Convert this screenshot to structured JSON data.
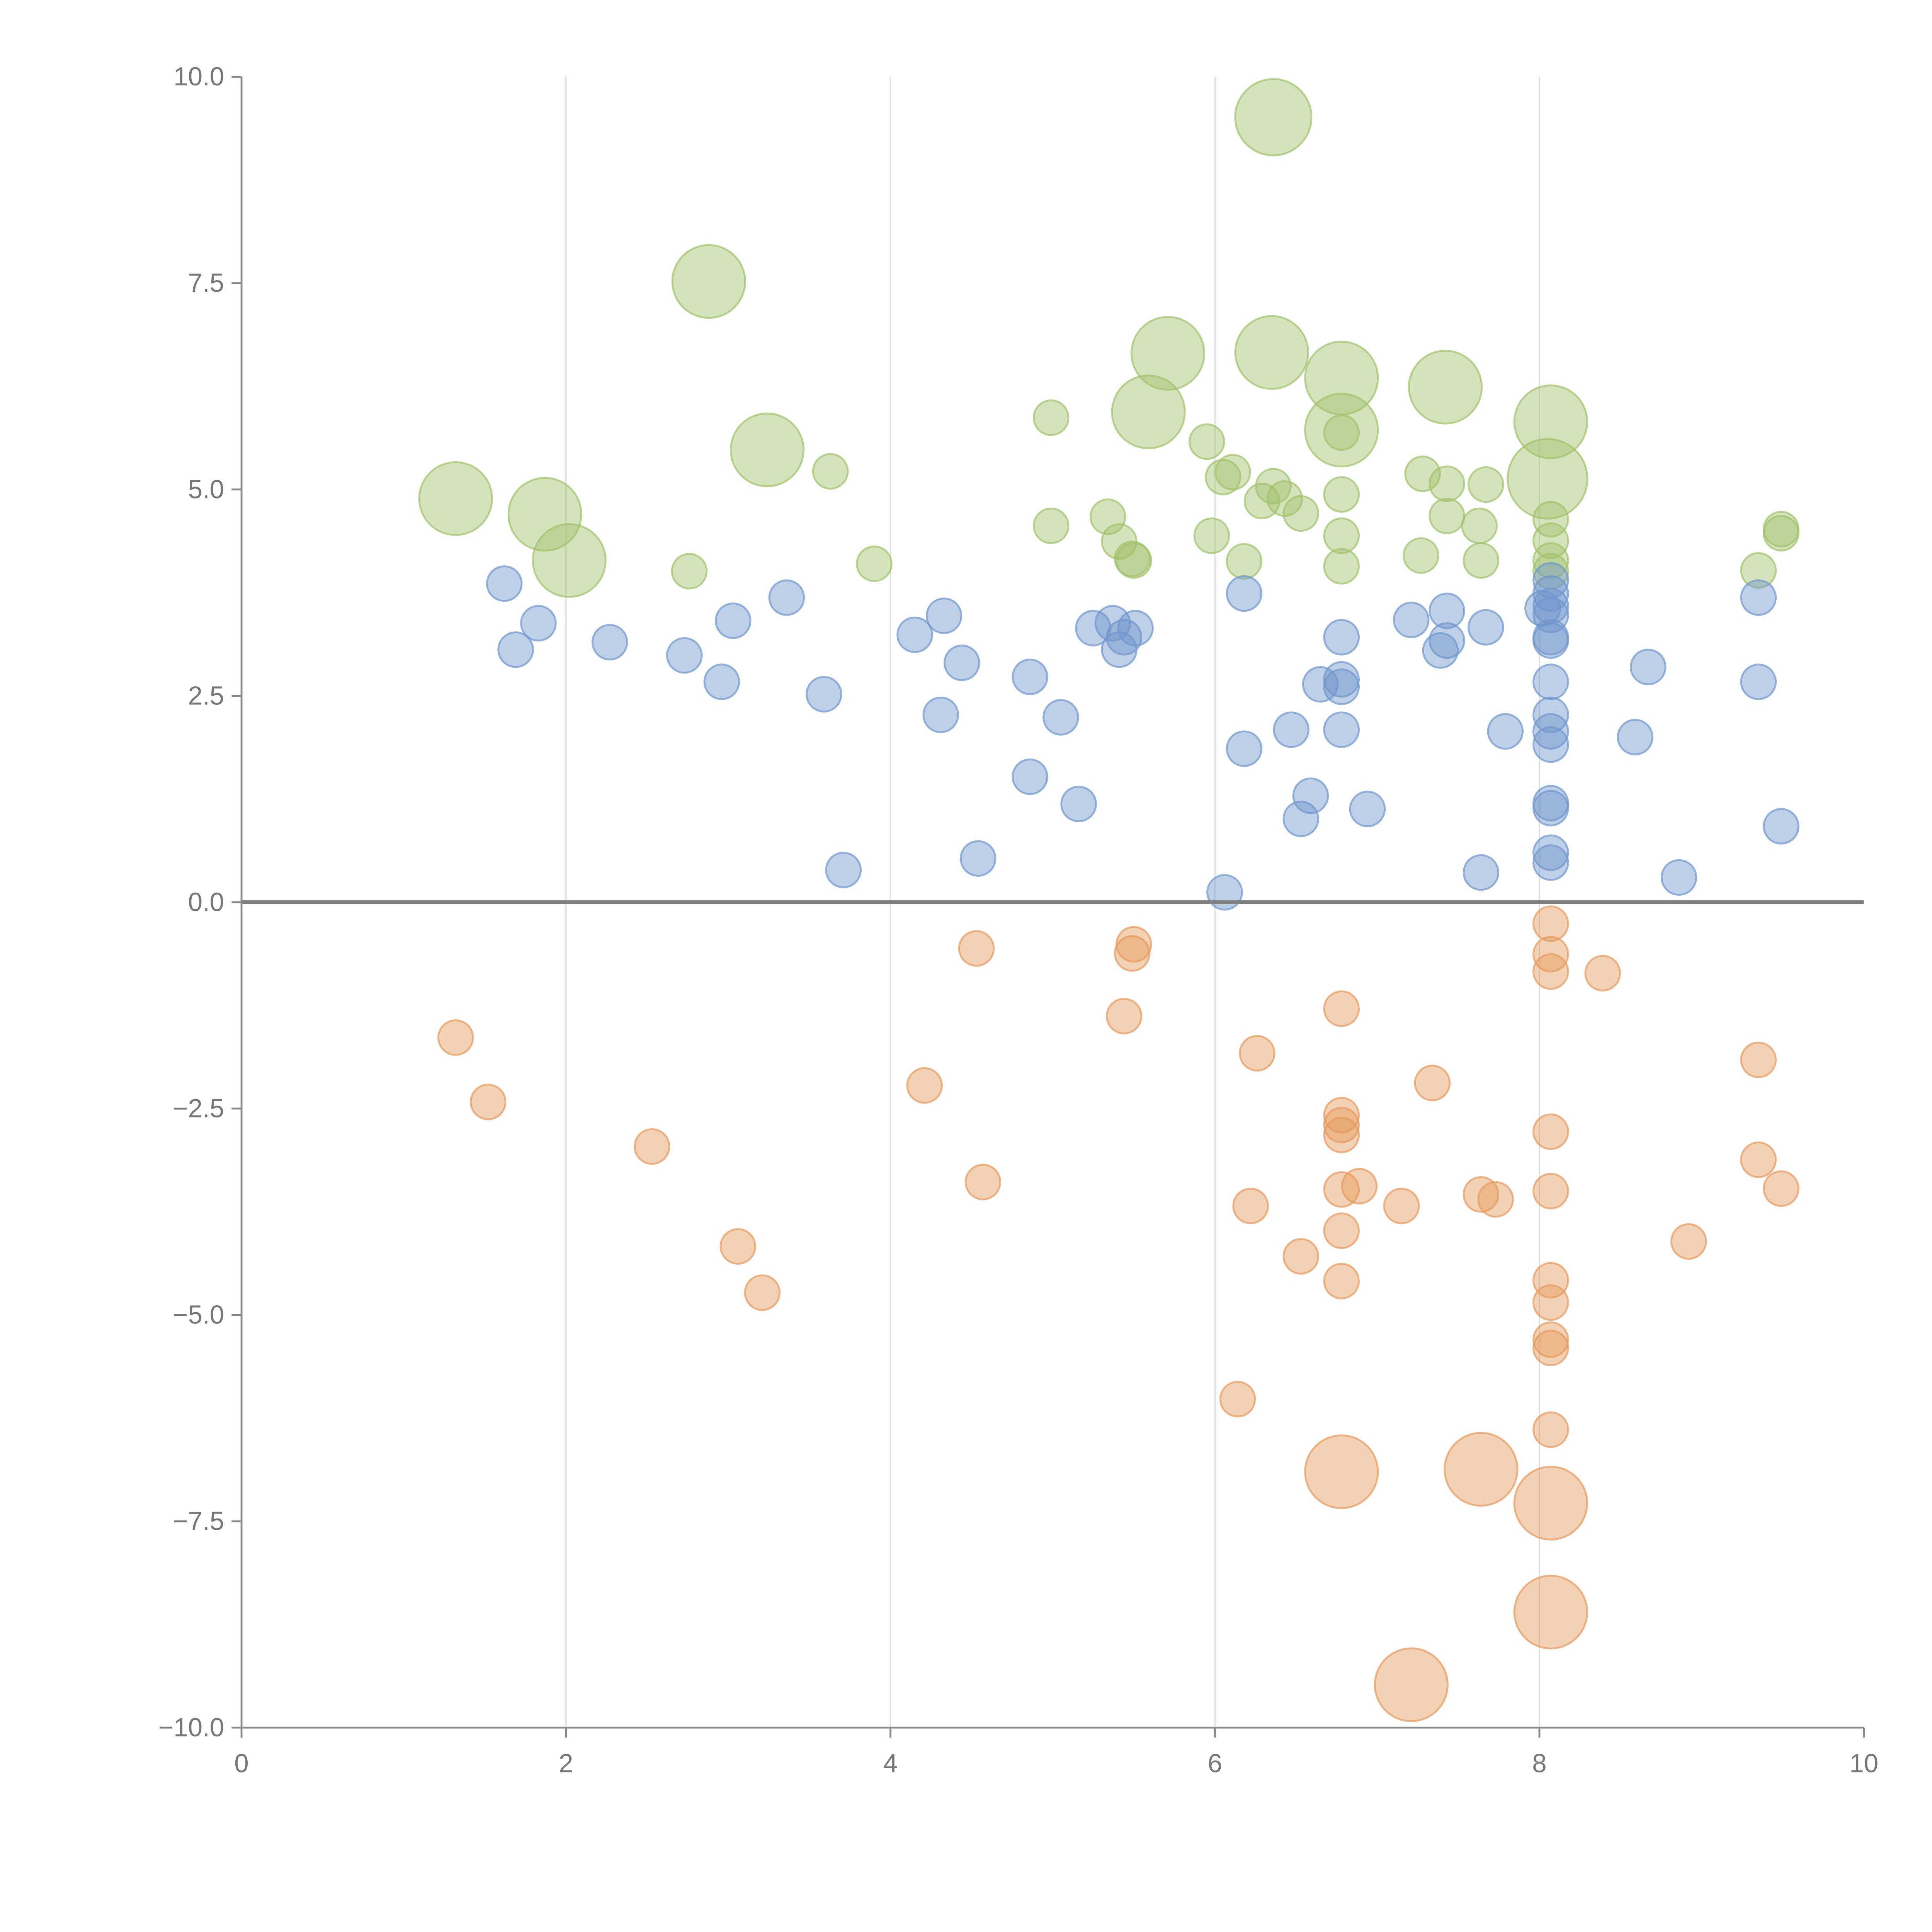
{
  "chart_data": {
    "type": "scatter",
    "title": "",
    "xlabel": "",
    "ylabel": "",
    "xlim": [
      0,
      10
    ],
    "ylim": [
      -10,
      10
    ],
    "x_ticks": [
      "0",
      "2",
      "4",
      "6",
      "8",
      "10"
    ],
    "y_ticks": [
      "10.0",
      "7.5",
      "5.0",
      "2.5",
      "0.0",
      "−2.5",
      "−5.0",
      "−7.5",
      "−10.0"
    ],
    "x_tick_values": [
      0,
      2,
      4,
      6,
      8,
      10
    ],
    "y_tick_values": [
      10,
      7.5,
      5,
      2.5,
      0,
      -2.5,
      -5,
      -7.5,
      -10
    ],
    "grid": "vertical",
    "point_format": [
      "x",
      "y",
      "size"
    ],
    "series": [
      {
        "color": "#9fc26a",
        "points": [
          [
            6.36,
            9.51,
            2.2
          ],
          [
            2.88,
            7.52,
            2.1
          ],
          [
            5.71,
            6.65,
            2.1
          ],
          [
            6.35,
            6.66,
            2.1
          ],
          [
            6.78,
            6.35,
            2.1
          ],
          [
            7.42,
            6.24,
            2.1
          ],
          [
            5.59,
            5.94,
            2.1
          ],
          [
            6.78,
            5.72,
            2.1
          ],
          [
            8.07,
            5.82,
            2.1
          ],
          [
            8.05,
            5.13,
            2.3
          ],
          [
            3.24,
            5.48,
            2.1
          ],
          [
            1.32,
            4.89,
            2.1
          ],
          [
            1.87,
            4.7,
            2.1
          ],
          [
            2.02,
            4.14,
            2.1
          ],
          [
            4.99,
            5.87,
            1
          ],
          [
            3.63,
            5.22,
            1
          ],
          [
            2.76,
            4.01,
            1
          ],
          [
            3.9,
            4.1,
            1
          ],
          [
            4.99,
            4.56,
            1
          ],
          [
            5.34,
            4.67,
            1
          ],
          [
            5.41,
            4.37,
            1
          ],
          [
            5.49,
            4.16,
            1
          ],
          [
            5.5,
            4.14,
            1
          ],
          [
            5.95,
            5.58,
            1
          ],
          [
            6.05,
            5.15,
            1
          ],
          [
            6.11,
            5.21,
            1
          ],
          [
            5.98,
            4.44,
            1
          ],
          [
            6.18,
            4.13,
            1
          ],
          [
            6.29,
            4.86,
            1
          ],
          [
            6.36,
            5.04,
            1
          ],
          [
            6.43,
            4.89,
            1
          ],
          [
            6.53,
            4.71,
            1
          ],
          [
            6.78,
            5.69,
            1
          ],
          [
            6.78,
            4.94,
            1
          ],
          [
            6.78,
            4.44,
            1
          ],
          [
            6.78,
            4.07,
            1
          ],
          [
            7.28,
            5.19,
            1
          ],
          [
            7.43,
            5.07,
            1
          ],
          [
            7.43,
            4.68,
            1
          ],
          [
            7.27,
            4.2,
            1
          ],
          [
            7.67,
            5.06,
            1
          ],
          [
            7.63,
            4.56,
            1
          ],
          [
            7.64,
            4.14,
            1
          ],
          [
            8.07,
            4.64,
            1
          ],
          [
            8.07,
            4.38,
            1
          ],
          [
            8.07,
            4.14,
            1
          ],
          [
            8.07,
            4.01,
            1
          ],
          [
            9.35,
            4.02,
            1
          ],
          [
            9.49,
            4.52,
            1
          ],
          [
            9.49,
            4.47,
            1
          ]
        ]
      },
      {
        "color": "#6f95cc",
        "points": [
          [
            1.62,
            3.86,
            1
          ],
          [
            1.83,
            3.38,
            1
          ],
          [
            1.69,
            3.06,
            1
          ],
          [
            2.27,
            3.15,
            1
          ],
          [
            2.73,
            2.99,
            1
          ],
          [
            3.03,
            3.41,
            1
          ],
          [
            2.96,
            2.67,
            1
          ],
          [
            3.36,
            3.69,
            1
          ],
          [
            3.59,
            2.52,
            1
          ],
          [
            3.71,
            0.39,
            1
          ],
          [
            4.15,
            3.24,
            1
          ],
          [
            4.33,
            3.47,
            1
          ],
          [
            4.44,
            2.9,
            1
          ],
          [
            4.31,
            2.27,
            1
          ],
          [
            4.54,
            0.53,
            1
          ],
          [
            4.86,
            2.73,
            1
          ],
          [
            5.05,
            2.24,
            1
          ],
          [
            4.86,
            1.52,
            1
          ],
          [
            5.16,
            1.19,
            1
          ],
          [
            5.25,
            3.32,
            1
          ],
          [
            5.37,
            3.38,
            1
          ],
          [
            5.44,
            3.21,
            1
          ],
          [
            5.41,
            3.06,
            1
          ],
          [
            5.51,
            3.32,
            1
          ],
          [
            6.06,
            0.12,
            1
          ],
          [
            6.18,
            3.74,
            1
          ],
          [
            6.18,
            1.86,
            1
          ],
          [
            6.47,
            2.09,
            1
          ],
          [
            6.59,
            1.29,
            1
          ],
          [
            6.53,
            1.01,
            1
          ],
          [
            6.65,
            2.64,
            1
          ],
          [
            6.78,
            3.21,
            1
          ],
          [
            6.78,
            2.7,
            1
          ],
          [
            6.78,
            2.61,
            1
          ],
          [
            6.78,
            2.09,
            1
          ],
          [
            6.94,
            1.13,
            1
          ],
          [
            7.21,
            3.42,
            1
          ],
          [
            7.43,
            3.53,
            1
          ],
          [
            7.43,
            3.17,
            1
          ],
          [
            7.39,
            3.05,
            1
          ],
          [
            7.67,
            3.33,
            1
          ],
          [
            7.79,
            2.07,
            1
          ],
          [
            7.64,
            0.36,
            1
          ],
          [
            8.02,
            3.56,
            1
          ],
          [
            8.07,
            3.9,
            1
          ],
          [
            8.07,
            3.74,
            1
          ],
          [
            8.07,
            3.59,
            1
          ],
          [
            8.07,
            3.48,
            1
          ],
          [
            8.07,
            3.21,
            1
          ],
          [
            8.07,
            3.17,
            1
          ],
          [
            8.07,
            2.67,
            1
          ],
          [
            8.07,
            2.27,
            1
          ],
          [
            8.07,
            2.07,
            1
          ],
          [
            8.07,
            1.91,
            1
          ],
          [
            8.07,
            1.2,
            1
          ],
          [
            8.07,
            1.14,
            1
          ],
          [
            8.07,
            0.6,
            1
          ],
          [
            8.07,
            0.48,
            1
          ],
          [
            8.67,
            2.85,
            1
          ],
          [
            8.59,
            2.0,
            1
          ],
          [
            8.86,
            0.3,
            1
          ],
          [
            9.35,
            3.69,
            1
          ],
          [
            9.35,
            2.67,
            1
          ],
          [
            9.49,
            0.92,
            1
          ]
        ]
      },
      {
        "color": "#e59a5c",
        "points": [
          [
            1.32,
            -1.64,
            1
          ],
          [
            1.52,
            -2.42,
            1
          ],
          [
            2.53,
            -2.96,
            1
          ],
          [
            3.06,
            -4.17,
            1
          ],
          [
            3.21,
            -4.73,
            1
          ],
          [
            4.21,
            -2.22,
            1
          ],
          [
            4.53,
            -0.56,
            1
          ],
          [
            4.57,
            -3.39,
            1
          ],
          [
            5.44,
            -1.38,
            1
          ],
          [
            5.49,
            -0.62,
            1
          ],
          [
            5.5,
            -0.51,
            1
          ],
          [
            6.14,
            -6.02,
            1
          ],
          [
            6.22,
            -3.68,
            1
          ],
          [
            6.26,
            -1.83,
            1
          ],
          [
            6.53,
            -4.29,
            1
          ],
          [
            6.78,
            -1.29,
            1
          ],
          [
            6.78,
            -2.58,
            1
          ],
          [
            6.78,
            -2.7,
            1
          ],
          [
            6.78,
            -2.82,
            1
          ],
          [
            6.78,
            -3.48,
            1
          ],
          [
            6.89,
            -3.44,
            1
          ],
          [
            6.78,
            -3.98,
            1
          ],
          [
            6.78,
            -4.59,
            1
          ],
          [
            7.15,
            -3.68,
            1
          ],
          [
            7.34,
            -2.19,
            1
          ],
          [
            7.64,
            -3.54,
            1
          ],
          [
            7.73,
            -3.6,
            1
          ],
          [
            8.07,
            -0.26,
            1
          ],
          [
            8.07,
            -0.63,
            1
          ],
          [
            8.07,
            -0.84,
            1
          ],
          [
            8.07,
            -2.78,
            1
          ],
          [
            8.07,
            -3.5,
            1
          ],
          [
            8.07,
            -4.58,
            1
          ],
          [
            8.07,
            -4.85,
            1
          ],
          [
            8.07,
            -5.3,
            1
          ],
          [
            8.07,
            -5.4,
            1
          ],
          [
            8.07,
            -6.39,
            1
          ],
          [
            8.39,
            -0.86,
            1
          ],
          [
            9.35,
            -1.91,
            1
          ],
          [
            9.35,
            -3.12,
            1
          ],
          [
            9.49,
            -3.47,
            1
          ],
          [
            8.92,
            -4.11,
            1
          ],
          [
            6.78,
            -6.9,
            2.1
          ],
          [
            7.64,
            -6.87,
            2.1
          ],
          [
            8.07,
            -7.28,
            2.1
          ],
          [
            8.07,
            -8.6,
            2.1
          ],
          [
            7.21,
            -9.48,
            2.1
          ]
        ]
      }
    ]
  }
}
